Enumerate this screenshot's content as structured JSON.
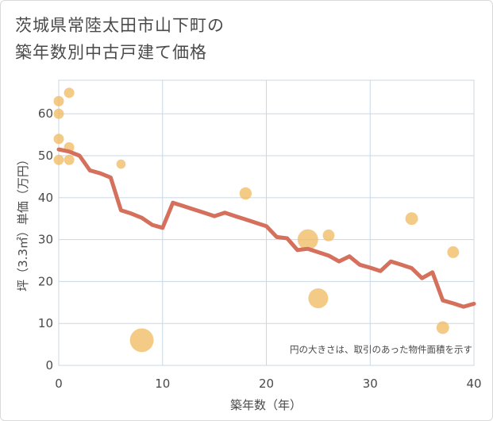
{
  "chart_data": {
    "type": "scatter",
    "title_line1": "茨城県常陸太田市山下町の",
    "title_line2": "築年数別中古戸建て価格",
    "xlabel": "築年数（年）",
    "ylabel": "坪（3.3㎡）単価（万円）",
    "xlim": [
      0,
      40
    ],
    "ylim": [
      0,
      68
    ],
    "xticks": [
      0,
      10,
      20,
      30,
      40
    ],
    "yticks": [
      0,
      10,
      20,
      30,
      40,
      50,
      60
    ],
    "grid": true,
    "annotation": "円の大きさは、取引のあった物件面積を示す",
    "colors": {
      "line": "#d4705c",
      "bubble": "#f0b95e",
      "grid": "#c8d8e6",
      "text": "#4a4a4a"
    },
    "points": [
      {
        "x": 0,
        "y": 63,
        "s": 1
      },
      {
        "x": 0,
        "y": 60,
        "s": 1
      },
      {
        "x": 0,
        "y": 54,
        "s": 1
      },
      {
        "x": 0,
        "y": 49,
        "s": 1
      },
      {
        "x": 1,
        "y": 65,
        "s": 1
      },
      {
        "x": 1,
        "y": 52,
        "s": 1
      },
      {
        "x": 1,
        "y": 49,
        "s": 1
      },
      {
        "x": 6,
        "y": 48,
        "s": 0.8
      },
      {
        "x": 8,
        "y": 6,
        "s": 4
      },
      {
        "x": 18,
        "y": 41,
        "s": 1.4
      },
      {
        "x": 24,
        "y": 30,
        "s": 3
      },
      {
        "x": 25,
        "y": 16,
        "s": 2.8
      },
      {
        "x": 26,
        "y": 31,
        "s": 1.3
      },
      {
        "x": 34,
        "y": 35,
        "s": 1.5
      },
      {
        "x": 37,
        "y": 9,
        "s": 1.5
      },
      {
        "x": 38,
        "y": 27,
        "s": 1.3
      }
    ],
    "trend": [
      {
        "x": 0,
        "y": 51.5
      },
      {
        "x": 1,
        "y": 51
      },
      {
        "x": 2,
        "y": 50
      },
      {
        "x": 3,
        "y": 46.5
      },
      {
        "x": 4,
        "y": 45.8
      },
      {
        "x": 5,
        "y": 44.8
      },
      {
        "x": 6,
        "y": 37
      },
      {
        "x": 7,
        "y": 36.2
      },
      {
        "x": 8,
        "y": 35.2
      },
      {
        "x": 9,
        "y": 33.5
      },
      {
        "x": 10,
        "y": 32.8
      },
      {
        "x": 11,
        "y": 38.8
      },
      {
        "x": 12,
        "y": 38
      },
      {
        "x": 13,
        "y": 37.2
      },
      {
        "x": 14,
        "y": 36.4
      },
      {
        "x": 15,
        "y": 35.6
      },
      {
        "x": 16,
        "y": 36.4
      },
      {
        "x": 17,
        "y": 35.6
      },
      {
        "x": 18,
        "y": 34.8
      },
      {
        "x": 19,
        "y": 34
      },
      {
        "x": 20,
        "y": 33.2
      },
      {
        "x": 21,
        "y": 30.6
      },
      {
        "x": 22,
        "y": 30.3
      },
      {
        "x": 23,
        "y": 27.5
      },
      {
        "x": 24,
        "y": 27.8
      },
      {
        "x": 25,
        "y": 27
      },
      {
        "x": 26,
        "y": 26.2
      },
      {
        "x": 27,
        "y": 24.8
      },
      {
        "x": 28,
        "y": 26
      },
      {
        "x": 29,
        "y": 24
      },
      {
        "x": 30,
        "y": 23.3
      },
      {
        "x": 31,
        "y": 22.5
      },
      {
        "x": 32,
        "y": 24.8
      },
      {
        "x": 33,
        "y": 24
      },
      {
        "x": 34,
        "y": 23.2
      },
      {
        "x": 35,
        "y": 20.8
      },
      {
        "x": 36,
        "y": 22.2
      },
      {
        "x": 37,
        "y": 15.5
      },
      {
        "x": 38,
        "y": 14.8
      },
      {
        "x": 39,
        "y": 14
      },
      {
        "x": 40,
        "y": 14.7
      }
    ]
  }
}
